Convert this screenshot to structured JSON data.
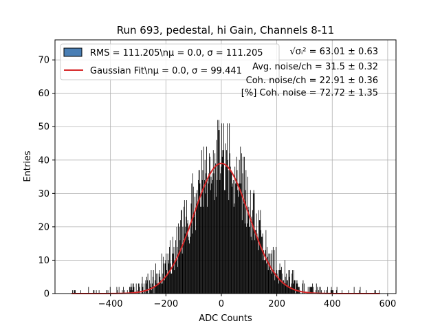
{
  "chart_data": {
    "type": "bar",
    "title": "Run 693, pedestal, hi Gain, Channels 8-11",
    "xlabel": "ADC Counts",
    "ylabel": "Entries",
    "xlim": [
      -600,
      630
    ],
    "ylim": [
      0,
      76
    ],
    "x_ticks": [
      -400,
      -200,
      0,
      200,
      400,
      600
    ],
    "y_ticks": [
      0,
      10,
      20,
      30,
      40,
      50,
      60,
      70
    ],
    "x_tick_labels": [
      "−400",
      "−200",
      "0",
      "200",
      "400",
      "600"
    ],
    "y_tick_labels": [
      "0",
      "10",
      "20",
      "30",
      "40",
      "50",
      "60",
      "70"
    ],
    "grid": true,
    "legend_position": "top-left",
    "series": [
      {
        "name": "RMS = 111.205\\nμ = 0.0, σ = 111.205",
        "kind": "histogram",
        "color": "#000000",
        "legend_color": "#4a7fb5",
        "distribution": {
          "mean": 0.0,
          "sigma": 111.205,
          "peak": 39,
          "max_observed": 55,
          "x_min": -540,
          "x_max": 575
        }
      },
      {
        "name": "Gaussian Fit\\nμ = 0.0, σ = 99.441",
        "kind": "line",
        "color": "#d62728",
        "mean": 0.0,
        "sigma": 99.441,
        "amplitude": 39
      }
    ],
    "annotations": [
      "√σᵢ² = 63.01 ± 0.63",
      "Avg. noise/ch = 31.5 ± 0.32",
      "Coh. noise/ch = 22.91 ± 0.36",
      "[%] Coh. noise = 72.72 ± 1.35"
    ]
  }
}
